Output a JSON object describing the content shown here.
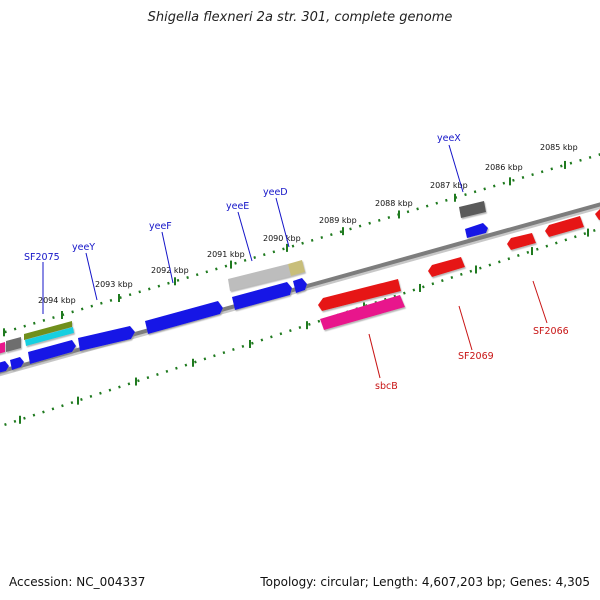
{
  "header": {
    "title": "Shigella flexneri 2a str. 301, complete genome"
  },
  "footer": {
    "accession": "Accession: NC_004337",
    "summary": "Topology: circular; Length: 4,607,203 bp; Genes: 4,305"
  },
  "colors": {
    "backbone": "#7d7d7d",
    "tick": "#1f7a1f",
    "forward_label": "#1414c8",
    "reverse_label": "#c81414",
    "forward_gene": "#1414e6",
    "reverse_gene": "#e61414",
    "pseudo_gene": "#e8148c"
  },
  "ruler_labels": [
    {
      "label": "2094 kbp",
      "kb": 2094
    },
    {
      "label": "2093 kbp",
      "kb": 2093
    },
    {
      "label": "2092 kbp",
      "kb": 2092
    },
    {
      "label": "2091 kbp",
      "kb": 2091
    },
    {
      "label": "2090 kbp",
      "kb": 2090
    },
    {
      "label": "2089 kbp",
      "kb": 2089
    },
    {
      "label": "2088 kbp",
      "kb": 2088
    },
    {
      "label": "2087 kbp",
      "kb": 2087
    },
    {
      "label": "2086 kbp",
      "kb": 2086
    },
    {
      "label": "2085 kbp",
      "kb": 2085
    }
  ],
  "gene_labels": [
    {
      "name": "SF2075",
      "strand": "forward"
    },
    {
      "name": "yeeY",
      "strand": "forward"
    },
    {
      "name": "yeeF",
      "strand": "forward"
    },
    {
      "name": "yeeE",
      "strand": "forward"
    },
    {
      "name": "yeeD",
      "strand": "forward"
    },
    {
      "name": "yeeX",
      "strand": "forward"
    },
    {
      "name": "sbcB",
      "strand": "reverse"
    },
    {
      "name": "SF2069",
      "strand": "reverse"
    },
    {
      "name": "SF2066",
      "strand": "reverse"
    }
  ]
}
